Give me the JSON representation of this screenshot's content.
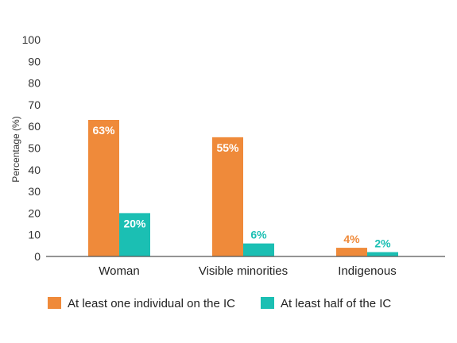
{
  "chart_data": {
    "type": "bar",
    "categories": [
      "Woman",
      "Visible minorities",
      "Indigenous"
    ],
    "ylabel": "Percentage (%)",
    "ylim": [
      0,
      100
    ],
    "yticks": [
      0,
      10,
      20,
      30,
      40,
      50,
      60,
      70,
      80,
      90,
      100
    ],
    "grid": false,
    "legend_position": "bottom",
    "series": [
      {
        "name": "At least one individual on the IC",
        "values": [
          63,
          55,
          4
        ],
        "labels": [
          "63%",
          "55%",
          "4%"
        ],
        "color": "#EF8A3A"
      },
      {
        "name": "At least half of the IC",
        "values": [
          20,
          6,
          2
        ],
        "labels": [
          "20%",
          "6%",
          "2%"
        ],
        "color": "#1BBFB3"
      }
    ]
  },
  "colors": {
    "label_inside": "#ffffff",
    "axis": "#555555"
  }
}
